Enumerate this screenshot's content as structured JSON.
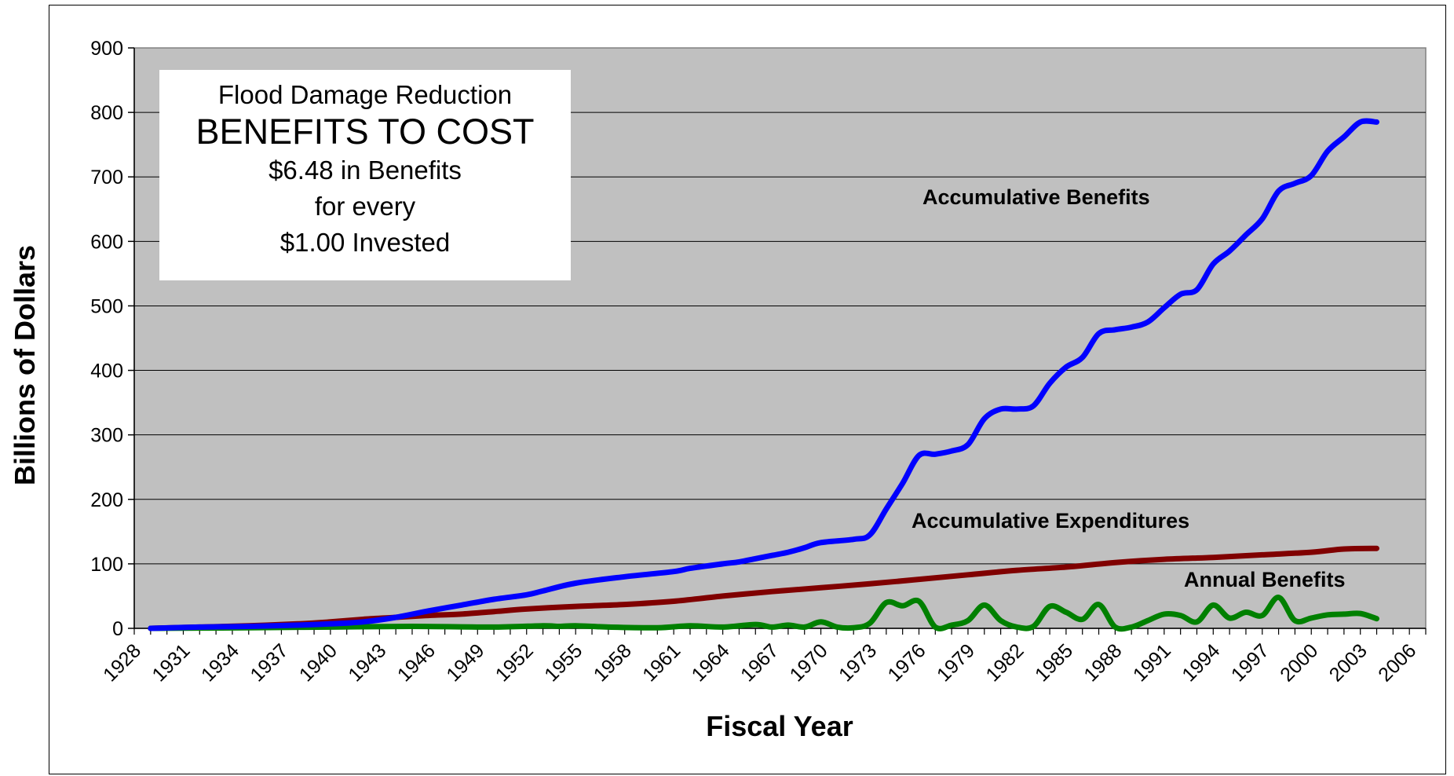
{
  "chart_data": {
    "type": "line",
    "xlabel": "Fiscal Year",
    "ylabel": "Billions of Dollars",
    "ylim": [
      0,
      900
    ],
    "xlim": [
      1928,
      2007
    ],
    "yticks": [
      0,
      100,
      200,
      300,
      400,
      500,
      600,
      700,
      800,
      900
    ],
    "xticks": [
      "1928",
      "1931",
      "1934",
      "1937",
      "1940",
      "1943",
      "1946",
      "1949",
      "1952",
      "1955",
      "1958",
      "1961",
      "1964",
      "1967",
      "1970",
      "1973",
      "1976",
      "1979",
      "1982",
      "1985",
      "1988",
      "1991",
      "1994",
      "1997",
      "2000",
      "2003",
      "2006"
    ],
    "grid": "horizontal",
    "plot_background": "#c0c0c0",
    "annotation": {
      "line1": "Flood Damage Reduction",
      "line2": "BENEFITS TO COST",
      "line3": "$6.48 in Benefits",
      "line4": "for every",
      "line5": "$1.00 Invested"
    },
    "series": [
      {
        "name": "Accumulative Benefits",
        "color": "#0000ff",
        "x": [
          1929,
          1932,
          1935,
          1938,
          1940,
          1942,
          1944,
          1946,
          1948,
          1950,
          1952,
          1953,
          1955,
          1958,
          1961,
          1962,
          1964,
          1965,
          1966,
          1967,
          1968,
          1969,
          1970,
          1972,
          1973,
          1974,
          1975,
          1976,
          1977,
          1978,
          1979,
          1980,
          1981,
          1982,
          1983,
          1984,
          1985,
          1986,
          1987,
          1988,
          1989,
          1990,
          1991,
          1992,
          1993,
          1994,
          1995,
          1996,
          1997,
          1998,
          1999,
          2000,
          2001,
          2002,
          2003,
          2004
        ],
        "y": [
          0,
          2,
          3,
          5,
          7,
          10,
          17,
          27,
          36,
          45,
          52,
          58,
          70,
          80,
          88,
          93,
          100,
          103,
          108,
          113,
          118,
          125,
          133,
          138,
          145,
          185,
          225,
          268,
          270,
          275,
          285,
          325,
          340,
          340,
          345,
          380,
          405,
          420,
          457,
          463,
          467,
          475,
          497,
          518,
          525,
          565,
          585,
          610,
          635,
          678,
          690,
          702,
          740,
          762,
          785,
          785
        ]
      },
      {
        "name": "Accumulative Expenditures",
        "color": "#800000",
        "x": [
          1929,
          1932,
          1935,
          1938,
          1940,
          1942,
          1944,
          1946,
          1948,
          1950,
          1952,
          1955,
          1958,
          1961,
          1964,
          1967,
          1970,
          1973,
          1976,
          1979,
          1982,
          1985,
          1988,
          1991,
          1994,
          1997,
          2000,
          2002,
          2004
        ],
        "y": [
          0,
          2,
          4,
          7,
          10,
          14,
          17,
          20,
          22,
          26,
          30,
          34,
          37,
          42,
          50,
          57,
          63,
          69,
          76,
          83,
          90,
          95,
          102,
          107,
          110,
          114,
          118,
          123,
          124
        ]
      },
      {
        "name": "Annual Benefits",
        "color": "#008000",
        "x": [
          1929,
          1935,
          1940,
          1945,
          1950,
          1953,
          1954,
          1955,
          1957,
          1960,
          1962,
          1964,
          1966,
          1967,
          1968,
          1969,
          1970,
          1971,
          1972,
          1973,
          1974,
          1975,
          1976,
          1977,
          1978,
          1979,
          1980,
          1981,
          1982,
          1983,
          1984,
          1985,
          1986,
          1987,
          1988,
          1989,
          1990,
          1991,
          1992,
          1993,
          1994,
          1995,
          1996,
          1997,
          1998,
          1999,
          2000,
          2001,
          2002,
          2003,
          2004
        ],
        "y": [
          0,
          1,
          2,
          3,
          2,
          4,
          3,
          4,
          2,
          1,
          4,
          2,
          6,
          2,
          5,
          2,
          10,
          2,
          1,
          8,
          40,
          35,
          42,
          2,
          5,
          12,
          36,
          12,
          2,
          3,
          34,
          25,
          14,
          37,
          2,
          2,
          12,
          22,
          20,
          10,
          36,
          16,
          25,
          20,
          48,
          12,
          16,
          21,
          22,
          23,
          15
        ]
      }
    ]
  }
}
